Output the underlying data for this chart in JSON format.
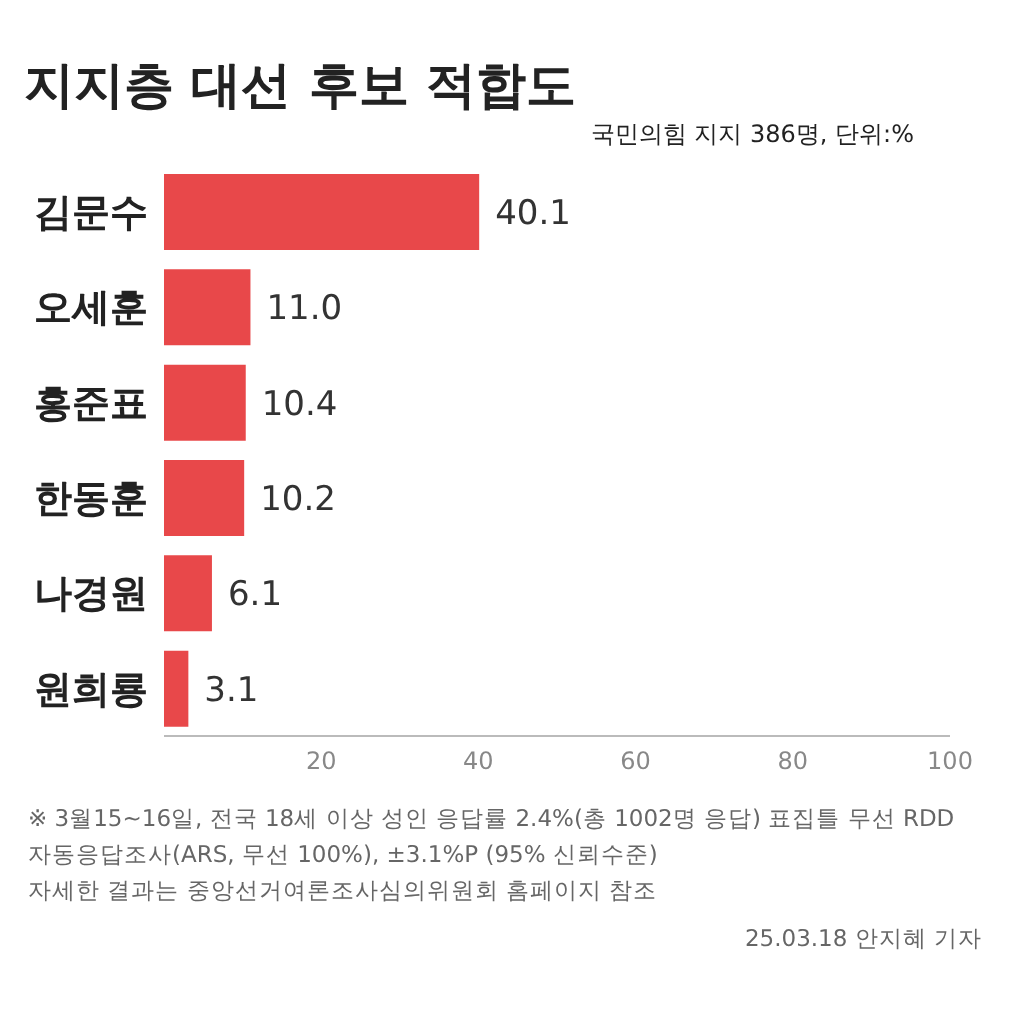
{
  "chart_data": {
    "type": "bar",
    "orientation": "horizontal",
    "title": "지지층 대선 후보 적합도",
    "subtitle": "국민의힘 지지 386명, 단위:%",
    "categories": [
      "김문수",
      "오세훈",
      "홍준표",
      "한동훈",
      "나경원",
      "원희룡"
    ],
    "values": [
      40.1,
      11.0,
      10.4,
      10.2,
      6.1,
      3.1
    ],
    "color": "#e8484a",
    "value_labels": [
      "40.1",
      "11.0",
      "10.4",
      "10.2",
      "6.1",
      "3.1"
    ],
    "xlim": [
      0,
      100
    ],
    "xticks": [
      20,
      40,
      60,
      80,
      100
    ],
    "grid": false,
    "annotations": [
      "※ 3월15~16일, 전국 18세 이상 성인 응답률 2.4%(총 1002명 응답) 표집틀 무선 RDD 자동응답조사(ARS, 무선 100%), ±3.1%P (95% 신뢰수준)",
      "자세한 결과는 중앙선거여론조사심의위원회 홈페이지 참조",
      "25.03.18 안지혜 기자"
    ]
  }
}
